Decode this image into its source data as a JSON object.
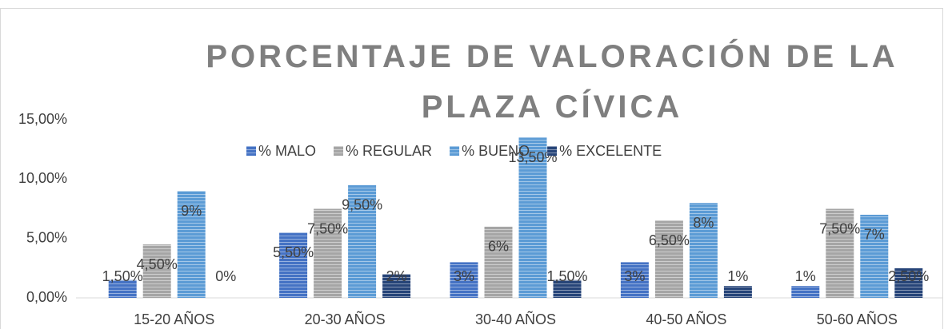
{
  "chart_data": {
    "type": "bar",
    "title": "PORCENTAJE DE VALORACIÓN DE LA PLAZA CÍVICA",
    "categories": [
      "15-20 AÑOS",
      "20-30 AÑOS",
      "30-40 AÑOS",
      "40-50 AÑOS",
      "50-60 AÑOS"
    ],
    "series": [
      {
        "name": "% MALO",
        "color": "#4472c4",
        "values": [
          1.5,
          5.5,
          3,
          3,
          1
        ],
        "value_labels": [
          "1,50%",
          "5,50%",
          "3%",
          "3%",
          "1%"
        ]
      },
      {
        "name": "% REGULAR",
        "color": "#a5a5a5",
        "values": [
          4.5,
          7.5,
          6,
          6.5,
          7.5
        ],
        "value_labels": [
          "4,50%",
          "7,50%",
          "6%",
          "6,50%",
          "7,50%"
        ]
      },
      {
        "name": "% BUENO",
        "color": "#5b9bd5",
        "values": [
          9,
          9.5,
          13.5,
          8,
          7
        ],
        "value_labels": [
          "9%",
          "9,50%",
          "13,50%",
          "8%",
          "7%"
        ]
      },
      {
        "name": "% EXCELENTE",
        "color": "#264478",
        "values": [
          0,
          2,
          1.5,
          1,
          2.5
        ],
        "value_labels": [
          "0%",
          "2%",
          "1,50%",
          "1%",
          "2,50%"
        ]
      }
    ],
    "ylim": [
      0,
      15
    ],
    "yticks": [
      {
        "value": 0,
        "label": "0,00%"
      },
      {
        "value": 5,
        "label": "5,00%"
      },
      {
        "value": 10,
        "label": "10,00%"
      },
      {
        "value": 15,
        "label": "15,00%"
      }
    ],
    "grid": false,
    "legend": "top"
  }
}
